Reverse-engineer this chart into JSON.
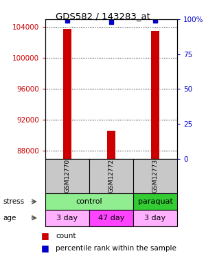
{
  "title": "GDS582 / 143283_at",
  "samples": [
    "GSM12770",
    "GSM12772",
    "GSM12773"
  ],
  "count_values": [
    103800,
    90600,
    103500
  ],
  "percentile_values": [
    99,
    98,
    99
  ],
  "ymin": 87000,
  "ymax": 105000,
  "yticks": [
    88000,
    92000,
    96000,
    100000,
    104000
  ],
  "y2min": 0,
  "y2max": 100,
  "y2ticks": [
    0,
    25,
    50,
    75,
    100
  ],
  "y2ticklabels": [
    "0",
    "25",
    "50",
    "75",
    "100%"
  ],
  "bar_color": "#CC0000",
  "dot_color": "#0000CC",
  "left_axis_color": "#CC0000",
  "right_axis_color": "#0000CC",
  "sample_bg": "#C8C8C8",
  "control_color": "#90EE90",
  "paraquat_color": "#33CC33",
  "age_colors": [
    "#FFB0FF",
    "#FF44FF",
    "#FFB0FF"
  ],
  "age_labels": [
    "3 day",
    "47 day",
    "3 day"
  ],
  "stress_groups": [
    [
      0,
      2,
      "control"
    ],
    [
      2,
      3,
      "paraquat"
    ]
  ]
}
